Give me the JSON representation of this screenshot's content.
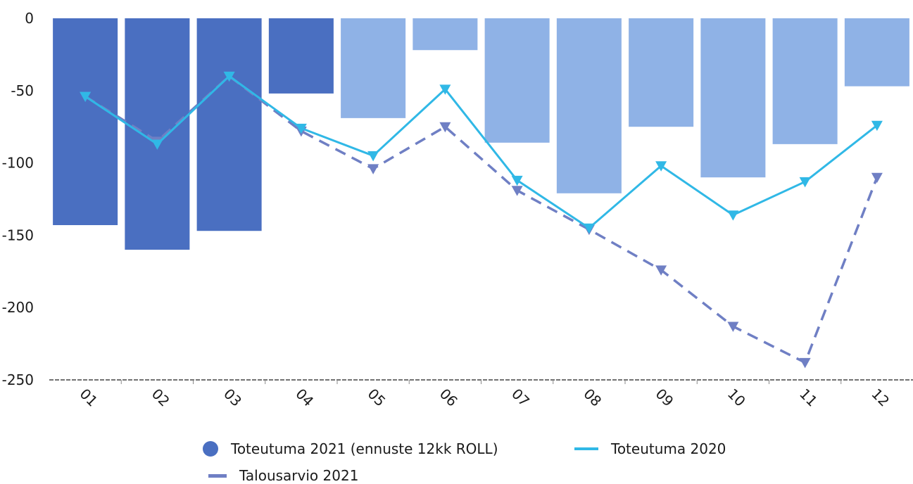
{
  "chart_data": {
    "type": "bar",
    "categories": [
      "01",
      "02",
      "03",
      "04",
      "05",
      "06",
      "07",
      "08",
      "09",
      "10",
      "11",
      "12"
    ],
    "ylim": [
      -250,
      0
    ],
    "yticks": [
      0,
      -50,
      -100,
      -150,
      -200,
      -250
    ],
    "actual_months": 4,
    "series": [
      {
        "name": "Toteutuma 2021 (ennuste 12kk ROLL)",
        "kind": "bar",
        "values": [
          -143,
          -160,
          -147,
          -52,
          -69,
          -22,
          -86,
          -121,
          -75,
          -110,
          -87,
          -47
        ],
        "color_actual": "#4a6fc1",
        "color_forecast": "#8fb2e6"
      },
      {
        "name": "Talousarvio 2021",
        "kind": "line-dashed",
        "values": [
          -54,
          -85,
          -40,
          -78,
          -104,
          -75,
          -119,
          -146,
          -174,
          -213,
          -238,
          -110
        ],
        "color": "#6f7fc4"
      },
      {
        "name": "Toteutuma 2020",
        "kind": "line",
        "values": [
          -54,
          -87,
          -40,
          -76,
          -95,
          -49,
          -112,
          -145,
          -102,
          -136,
          -113,
          -74
        ],
        "color": "#30b8e6"
      }
    ]
  }
}
